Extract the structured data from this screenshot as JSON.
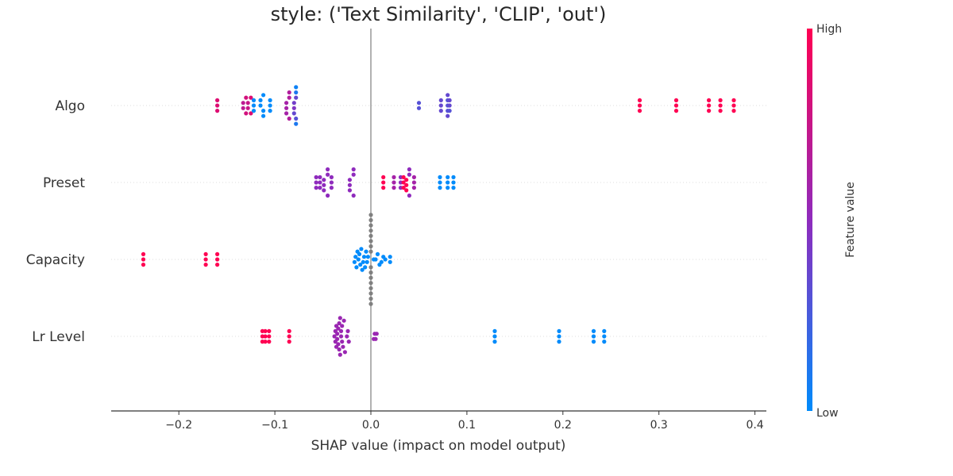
{
  "chart_data": {
    "type": "scatter",
    "title": "style: ('Text Similarity', 'CLIP', 'out')",
    "xlabel": "SHAP value (impact on model output)",
    "xlim": [
      -0.27,
      0.41
    ],
    "xticks": [
      -0.2,
      -0.1,
      0.0,
      0.1,
      0.2,
      0.3,
      0.4
    ],
    "xtick_labels": [
      "−0.2",
      "−0.1",
      "0.0",
      "0.1",
      "0.2",
      "0.3",
      "0.4"
    ],
    "grid": false,
    "colorbar": {
      "label": "Feature value",
      "high_label": "High",
      "low_label": "Low",
      "low_color": "#008bfb",
      "mid_color": "#8f2bbd",
      "high_color": "#ff0052"
    },
    "missing_value_color": "#808080",
    "features": [
      {
        "name": "Algo",
        "points": [
          {
            "x": -0.16,
            "f": 0.85
          },
          {
            "x": -0.16,
            "f": 0.85
          },
          {
            "x": -0.16,
            "f": 0.85
          },
          {
            "x": -0.133,
            "f": 0.7
          },
          {
            "x": -0.133,
            "f": 0.7
          },
          {
            "x": -0.13,
            "f": 0.8
          },
          {
            "x": -0.13,
            "f": 0.8
          },
          {
            "x": -0.128,
            "f": 0.75
          },
          {
            "x": -0.128,
            "f": 0.75
          },
          {
            "x": -0.125,
            "f": 0.85
          },
          {
            "x": -0.125,
            "f": 0.85
          },
          {
            "x": -0.122,
            "f": 0.0
          },
          {
            "x": -0.122,
            "f": 0.0
          },
          {
            "x": -0.122,
            "f": 0.0
          },
          {
            "x": -0.115,
            "f": 0.0
          },
          {
            "x": -0.115,
            "f": 0.0
          },
          {
            "x": -0.112,
            "f": 0.0
          },
          {
            "x": -0.112,
            "f": 0.0
          },
          {
            "x": -0.112,
            "f": 0.0
          },
          {
            "x": -0.105,
            "f": 0.0
          },
          {
            "x": -0.105,
            "f": 0.0
          },
          {
            "x": -0.105,
            "f": 0.0
          },
          {
            "x": -0.088,
            "f": 0.6
          },
          {
            "x": -0.088,
            "f": 0.6
          },
          {
            "x": -0.088,
            "f": 0.6
          },
          {
            "x": -0.085,
            "f": 0.65
          },
          {
            "x": -0.085,
            "f": 0.65
          },
          {
            "x": -0.085,
            "f": 0.65
          },
          {
            "x": -0.08,
            "f": 0.45
          },
          {
            "x": -0.08,
            "f": 0.4
          },
          {
            "x": -0.08,
            "f": 0.35
          },
          {
            "x": -0.078,
            "f": 0.35
          },
          {
            "x": -0.078,
            "f": 0.3
          },
          {
            "x": -0.078,
            "f": 0.1
          },
          {
            "x": -0.078,
            "f": 0.1
          },
          {
            "x": -0.078,
            "f": 0.05
          },
          {
            "x": 0.05,
            "f": 0.3
          },
          {
            "x": 0.05,
            "f": 0.3
          },
          {
            "x": 0.073,
            "f": 0.35
          },
          {
            "x": 0.073,
            "f": 0.35
          },
          {
            "x": 0.073,
            "f": 0.35
          },
          {
            "x": 0.08,
            "f": 0.3
          },
          {
            "x": 0.08,
            "f": 0.3
          },
          {
            "x": 0.08,
            "f": 0.3
          },
          {
            "x": 0.08,
            "f": 0.35
          },
          {
            "x": 0.08,
            "f": 0.35
          },
          {
            "x": 0.082,
            "f": 0.35
          },
          {
            "x": 0.082,
            "f": 0.35
          },
          {
            "x": 0.082,
            "f": 0.3
          },
          {
            "x": 0.28,
            "f": 1.0
          },
          {
            "x": 0.28,
            "f": 1.0
          },
          {
            "x": 0.28,
            "f": 1.0
          },
          {
            "x": 0.318,
            "f": 1.0
          },
          {
            "x": 0.318,
            "f": 1.0
          },
          {
            "x": 0.318,
            "f": 1.0
          },
          {
            "x": 0.352,
            "f": 1.0
          },
          {
            "x": 0.352,
            "f": 1.0
          },
          {
            "x": 0.352,
            "f": 1.0
          },
          {
            "x": 0.364,
            "f": 1.0
          },
          {
            "x": 0.364,
            "f": 1.0
          },
          {
            "x": 0.364,
            "f": 1.0
          },
          {
            "x": 0.378,
            "f": 1.0
          },
          {
            "x": 0.378,
            "f": 1.0
          },
          {
            "x": 0.378,
            "f": 1.0
          }
        ]
      },
      {
        "name": "Preset",
        "points": [
          {
            "x": -0.057,
            "f": 0.5
          },
          {
            "x": -0.057,
            "f": 0.5
          },
          {
            "x": -0.057,
            "f": 0.5
          },
          {
            "x": -0.053,
            "f": 0.5
          },
          {
            "x": -0.053,
            "f": 0.5
          },
          {
            "x": -0.053,
            "f": 0.5
          },
          {
            "x": -0.049,
            "f": 0.5
          },
          {
            "x": -0.049,
            "f": 0.5
          },
          {
            "x": -0.049,
            "f": 0.5
          },
          {
            "x": -0.045,
            "f": 0.5
          },
          {
            "x": -0.045,
            "f": 0.5
          },
          {
            "x": -0.045,
            "f": 0.5
          },
          {
            "x": -0.041,
            "f": 0.5
          },
          {
            "x": -0.041,
            "f": 0.5
          },
          {
            "x": -0.041,
            "f": 0.5
          },
          {
            "x": -0.022,
            "f": 0.5
          },
          {
            "x": -0.022,
            "f": 0.5
          },
          {
            "x": -0.022,
            "f": 0.5
          },
          {
            "x": -0.018,
            "f": 0.5
          },
          {
            "x": -0.018,
            "f": 0.5
          },
          {
            "x": -0.018,
            "f": 0.5
          },
          {
            "x": 0.013,
            "f": 1.0
          },
          {
            "x": 0.013,
            "f": 1.0
          },
          {
            "x": 0.013,
            "f": 1.0
          },
          {
            "x": 0.024,
            "f": 0.6
          },
          {
            "x": 0.024,
            "f": 0.6
          },
          {
            "x": 0.024,
            "f": 0.6
          },
          {
            "x": 0.031,
            "f": 0.5
          },
          {
            "x": 0.031,
            "f": 0.5
          },
          {
            "x": 0.031,
            "f": 0.5
          },
          {
            "x": 0.034,
            "f": 1.0
          },
          {
            "x": 0.034,
            "f": 1.0
          },
          {
            "x": 0.034,
            "f": 1.0
          },
          {
            "x": 0.037,
            "f": 1.0
          },
          {
            "x": 0.037,
            "f": 1.0
          },
          {
            "x": 0.037,
            "f": 1.0
          },
          {
            "x": 0.04,
            "f": 0.5
          },
          {
            "x": 0.04,
            "f": 0.5
          },
          {
            "x": 0.04,
            "f": 0.5
          },
          {
            "x": 0.045,
            "f": 0.6
          },
          {
            "x": 0.045,
            "f": 0.6
          },
          {
            "x": 0.045,
            "f": 0.6
          },
          {
            "x": 0.072,
            "f": 0.0
          },
          {
            "x": 0.072,
            "f": 0.0
          },
          {
            "x": 0.072,
            "f": 0.0
          },
          {
            "x": 0.08,
            "f": 0.0
          },
          {
            "x": 0.08,
            "f": 0.0
          },
          {
            "x": 0.08,
            "f": 0.0
          },
          {
            "x": 0.086,
            "f": 0.0
          },
          {
            "x": 0.086,
            "f": 0.0
          },
          {
            "x": 0.086,
            "f": 0.0
          }
        ]
      },
      {
        "name": "Capacity",
        "points": [
          {
            "x": -0.237,
            "f": 1.0
          },
          {
            "x": -0.237,
            "f": 1.0
          },
          {
            "x": -0.237,
            "f": 1.0
          },
          {
            "x": -0.172,
            "f": 1.0
          },
          {
            "x": -0.172,
            "f": 1.0
          },
          {
            "x": -0.172,
            "f": 1.0
          },
          {
            "x": -0.16,
            "f": 1.0
          },
          {
            "x": -0.16,
            "f": 1.0
          },
          {
            "x": -0.16,
            "f": 1.0
          },
          {
            "x": -0.017,
            "f": 0.0
          },
          {
            "x": -0.016,
            "f": 0.0
          },
          {
            "x": -0.015,
            "f": 0.0
          },
          {
            "x": -0.014,
            "f": 0.0
          },
          {
            "x": -0.013,
            "f": 0.0
          },
          {
            "x": -0.012,
            "f": 0.0
          },
          {
            "x": -0.011,
            "f": 0.0
          },
          {
            "x": -0.01,
            "f": 0.0
          },
          {
            "x": -0.009,
            "f": 0.0
          },
          {
            "x": -0.008,
            "f": 0.0
          },
          {
            "x": -0.007,
            "f": 0.0
          },
          {
            "x": -0.006,
            "f": 0.0
          },
          {
            "x": -0.005,
            "f": 0.0
          },
          {
            "x": -0.004,
            "f": 0.0
          },
          {
            "x": -0.003,
            "f": 0.0
          },
          {
            "x": 0.0,
            "f": null
          },
          {
            "x": 0.0,
            "f": null
          },
          {
            "x": 0.0,
            "f": null
          },
          {
            "x": 0.0,
            "f": null
          },
          {
            "x": 0.0,
            "f": null
          },
          {
            "x": 0.0,
            "f": null
          },
          {
            "x": 0.0,
            "f": null
          },
          {
            "x": 0.0,
            "f": null
          },
          {
            "x": 0.0,
            "f": null
          },
          {
            "x": 0.0,
            "f": null
          },
          {
            "x": 0.0,
            "f": null
          },
          {
            "x": 0.0,
            "f": null
          },
          {
            "x": 0.0,
            "f": null
          },
          {
            "x": 0.0,
            "f": null
          },
          {
            "x": 0.0,
            "f": null
          },
          {
            "x": 0.0,
            "f": null
          },
          {
            "x": 0.003,
            "f": 0.0
          },
          {
            "x": 0.005,
            "f": 0.0
          },
          {
            "x": 0.007,
            "f": 0.0
          },
          {
            "x": 0.009,
            "f": 0.0
          },
          {
            "x": 0.011,
            "f": 0.0
          },
          {
            "x": 0.013,
            "f": 0.0
          },
          {
            "x": 0.015,
            "f": 0.0
          },
          {
            "x": 0.02,
            "f": 0.0
          },
          {
            "x": 0.02,
            "f": 0.0
          }
        ]
      },
      {
        "name": "Lr Level",
        "points": [
          {
            "x": -0.113,
            "f": 1.0
          },
          {
            "x": -0.113,
            "f": 1.0
          },
          {
            "x": -0.113,
            "f": 1.0
          },
          {
            "x": -0.11,
            "f": 1.0
          },
          {
            "x": -0.11,
            "f": 1.0
          },
          {
            "x": -0.11,
            "f": 1.0
          },
          {
            "x": -0.106,
            "f": 1.0
          },
          {
            "x": -0.106,
            "f": 1.0
          },
          {
            "x": -0.106,
            "f": 1.0
          },
          {
            "x": -0.085,
            "f": 1.0
          },
          {
            "x": -0.085,
            "f": 1.0
          },
          {
            "x": -0.085,
            "f": 1.0
          },
          {
            "x": -0.038,
            "f": 0.55
          },
          {
            "x": -0.037,
            "f": 0.55
          },
          {
            "x": -0.037,
            "f": 0.55
          },
          {
            "x": -0.036,
            "f": 0.55
          },
          {
            "x": -0.036,
            "f": 0.55
          },
          {
            "x": -0.035,
            "f": 0.55
          },
          {
            "x": -0.035,
            "f": 0.55
          },
          {
            "x": -0.034,
            "f": 0.55
          },
          {
            "x": -0.034,
            "f": 0.55
          },
          {
            "x": -0.033,
            "f": 0.55
          },
          {
            "x": -0.033,
            "f": 0.55
          },
          {
            "x": -0.032,
            "f": 0.55
          },
          {
            "x": -0.032,
            "f": 0.55
          },
          {
            "x": -0.031,
            "f": 0.55
          },
          {
            "x": -0.031,
            "f": 0.55
          },
          {
            "x": -0.03,
            "f": 0.55
          },
          {
            "x": -0.03,
            "f": 0.55
          },
          {
            "x": -0.029,
            "f": 0.55
          },
          {
            "x": -0.028,
            "f": 0.55
          },
          {
            "x": -0.027,
            "f": 0.55
          },
          {
            "x": -0.025,
            "f": 0.55
          },
          {
            "x": -0.024,
            "f": 0.55
          },
          {
            "x": -0.023,
            "f": 0.55
          },
          {
            "x": 0.003,
            "f": 0.55
          },
          {
            "x": 0.004,
            "f": 0.55
          },
          {
            "x": 0.005,
            "f": 0.55
          },
          {
            "x": 0.006,
            "f": 0.55
          },
          {
            "x": 0.129,
            "f": 0.0
          },
          {
            "x": 0.129,
            "f": 0.0
          },
          {
            "x": 0.129,
            "f": 0.0
          },
          {
            "x": 0.196,
            "f": 0.0
          },
          {
            "x": 0.196,
            "f": 0.0
          },
          {
            "x": 0.196,
            "f": 0.0
          },
          {
            "x": 0.232,
            "f": 0.0
          },
          {
            "x": 0.232,
            "f": 0.0
          },
          {
            "x": 0.232,
            "f": 0.0
          },
          {
            "x": 0.243,
            "f": 0.0
          },
          {
            "x": 0.243,
            "f": 0.0
          },
          {
            "x": 0.243,
            "f": 0.0
          }
        ]
      }
    ]
  }
}
